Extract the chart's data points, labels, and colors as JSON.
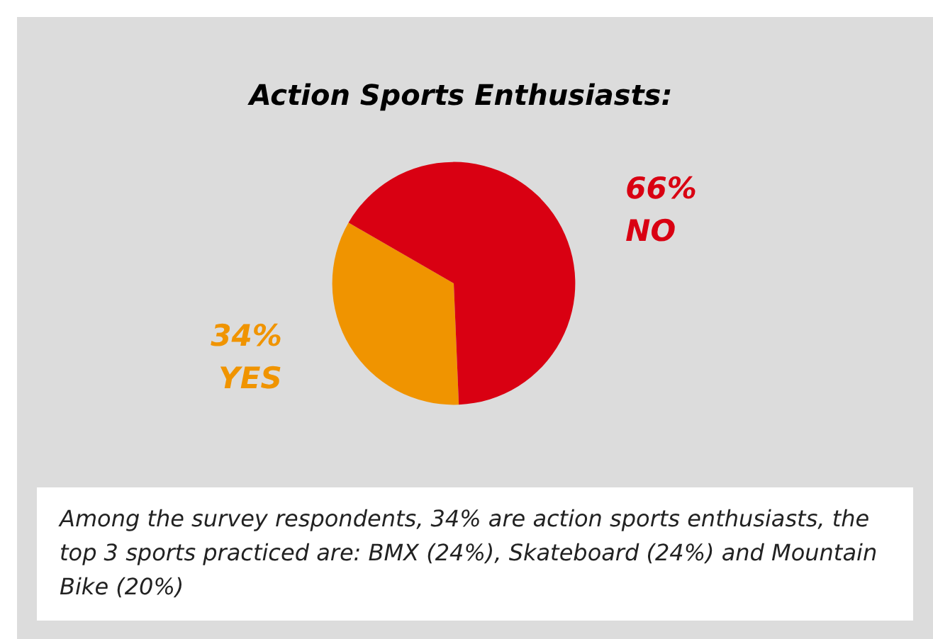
{
  "chart_data": {
    "type": "pie",
    "title": "Action Sports Enthusiasts:",
    "categories": [
      "YES",
      "NO"
    ],
    "values": [
      34,
      66
    ],
    "value_labels": [
      "34%",
      "66%"
    ],
    "colors": [
      "#f09400",
      "#d90012"
    ],
    "legend": false,
    "annotations": [
      "Among the survey respondents, 34% are action sports enthusiasts, the top 3 sports practiced are: BMX (24%), Skateboard (24%) and Mountain Bike (20%)"
    ]
  }
}
